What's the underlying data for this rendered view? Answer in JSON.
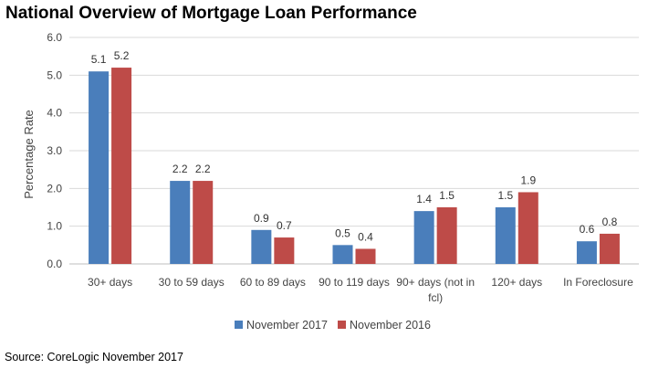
{
  "header": {
    "title": "National Overview of Mortgage Loan Performance"
  },
  "footer": {
    "source": "Source:  CoreLogic November 2017"
  },
  "chart_data": {
    "type": "bar",
    "title": "National Overview of Mortgage Loan Performance",
    "xlabel": "",
    "ylabel": "Percentage Rate",
    "ylim": [
      0,
      6
    ],
    "yticks": [
      "0.0",
      "1.0",
      "2.0",
      "3.0",
      "4.0",
      "5.0",
      "6.0"
    ],
    "grid": true,
    "legend_position": "bottom",
    "categories": [
      [
        "30+ days"
      ],
      [
        "30 to 59 days"
      ],
      [
        "60 to 89 days"
      ],
      [
        "90 to 119 days"
      ],
      [
        "90+ days (not in",
        "fcl)"
      ],
      [
        "120+ days"
      ],
      [
        "In Foreclosure"
      ]
    ],
    "series": [
      {
        "name": "November 2017",
        "color": "#4a7ebb",
        "values": [
          5.1,
          2.2,
          0.9,
          0.5,
          1.4,
          1.5,
          0.6
        ],
        "labels": [
          "5.1",
          "2.2",
          "0.9",
          "0.5",
          "1.4",
          "1.5",
          "0.6"
        ]
      },
      {
        "name": "November 2016",
        "color": "#be4b48",
        "values": [
          5.2,
          2.2,
          0.7,
          0.4,
          1.5,
          1.9,
          0.8
        ],
        "labels": [
          "5.2",
          "2.2",
          "0.7",
          "0.4",
          "1.5",
          "1.9",
          "0.8"
        ]
      }
    ]
  }
}
